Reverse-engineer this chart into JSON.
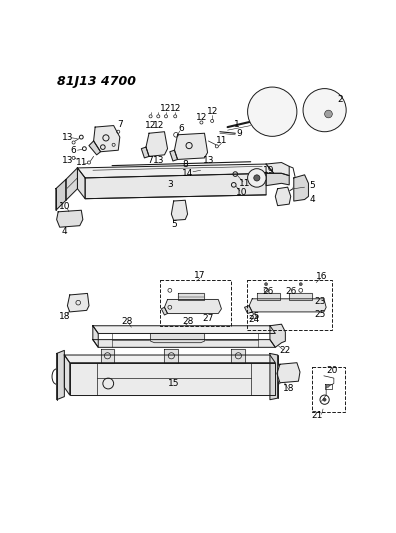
{
  "title": "81J13 4700",
  "bg_color": "#ffffff",
  "line_color": "#1a1a1a",
  "title_fontsize": 9,
  "label_fontsize": 6.5,
  "fig_width": 3.96,
  "fig_height": 5.33,
  "dpi": 100
}
